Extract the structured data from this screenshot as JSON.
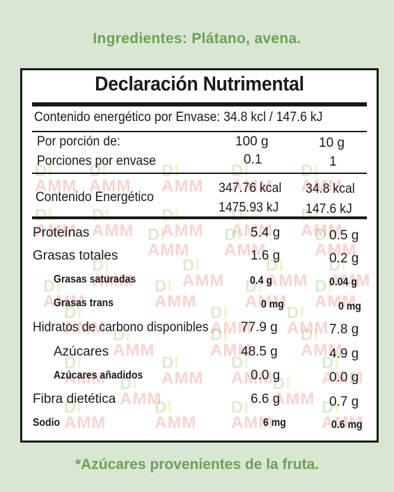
{
  "ingredients": "Ingredientes: Plátano, avena.",
  "label": {
    "title": "Declaración Nutrimental",
    "energy_per_package": "Contenido energético por Envase: 34.8 kcl / 147.6 kJ",
    "per_portion_label": "Por porción de:",
    "per_portion_100": "100 g",
    "per_portion_serving": "10 g",
    "portions_label": "Porciones por envase",
    "portions_100": "0.1",
    "portions_serving": "1",
    "energy_label": "Contenido Energético",
    "energy_kcal_100": "347.76 kcal",
    "energy_kj_100": "1475.93 kJ",
    "energy_kcal_serving": "34.8 kcal",
    "energy_kj_serving": "147.6 kJ",
    "rows": [
      {
        "label": "Proteínas",
        "v100": "5.4 g",
        "vs": "0.5 g"
      },
      {
        "label": "Grasas totales",
        "v100": "1.6 g",
        "vs": "0.2 g"
      },
      {
        "label": "Grasas saturadas",
        "v100": "0.4 g",
        "vs": "0.04 g"
      },
      {
        "label": "Grasas trans",
        "v100": "0 mg",
        "vs": "0 mg"
      },
      {
        "label": "Hidratos de carbono disponibles",
        "v100": "77.9 g",
        "vs": "7.8 g"
      },
      {
        "label": "Azúcares",
        "v100": "48.5 g",
        "vs": "4.9 g"
      },
      {
        "label": "Azúcares añadidos",
        "v100": "0.0 g",
        "vs": "0.0 g"
      },
      {
        "label": "Fibra dietética",
        "v100": "6.6 g",
        "vs": "0.7 g"
      },
      {
        "label": "Sodio",
        "v100": "6 mg",
        "vs": "0.6 mg"
      }
    ]
  },
  "watermark": {
    "top": "DI",
    "bottom": "AMM"
  },
  "footnote": "*Azúcares provenientes de  la fruta.",
  "colors": {
    "background": "#d8e6d3",
    "accent_green": "#6aa256",
    "text": "#1a1a1a"
  }
}
